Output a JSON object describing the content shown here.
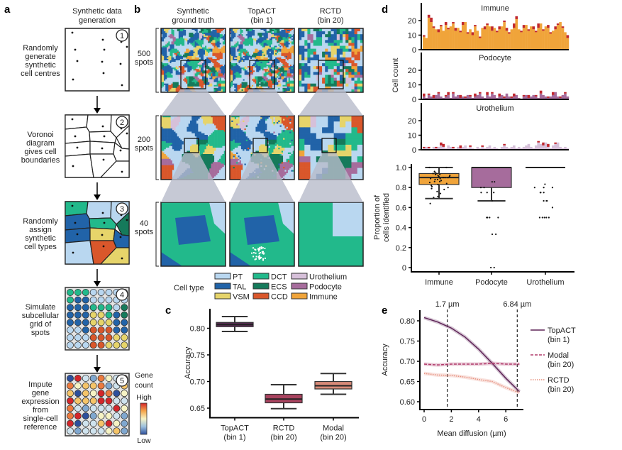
{
  "panel_a": {
    "label": "a",
    "title": [
      "Synthetic data",
      "generation"
    ],
    "steps": [
      {
        "num": "1",
        "text": [
          "Randomly",
          "generate",
          "synthetic",
          "cell centres"
        ]
      },
      {
        "num": "2",
        "text": [
          "Voronoi",
          "diagram",
          "gives cell",
          "boundaries"
        ]
      },
      {
        "num": "3",
        "text": [
          "Randomly",
          "assign",
          "synthetic",
          "cell types"
        ]
      },
      {
        "num": "4",
        "text": [
          "Simulate",
          "subcellular",
          "grid of",
          "spots"
        ]
      },
      {
        "num": "5",
        "text": [
          "Impute",
          "gene",
          "expression",
          "from",
          "single-cell",
          "reference"
        ]
      }
    ],
    "gene_count_legend": {
      "title": [
        "Gene",
        "count"
      ],
      "high": "High",
      "low": "Low"
    }
  },
  "panel_b": {
    "label": "b",
    "columns": [
      [
        "Synthetic",
        "ground truth"
      ],
      [
        "TopACT",
        "(bin 1)"
      ],
      [
        "RCTD",
        "(bin 20)"
      ]
    ],
    "rows": [
      [
        "500",
        "spots"
      ],
      [
        "200",
        "spots"
      ],
      [
        "40",
        "spots"
      ]
    ],
    "legend_title": "Cell type",
    "cell_types": [
      {
        "name": "PT",
        "color": "#b9d7f0"
      },
      {
        "name": "TAL",
        "color": "#2163a8"
      },
      {
        "name": "VSM",
        "color": "#e6d46a"
      },
      {
        "name": "DCT",
        "color": "#22b98b"
      },
      {
        "name": "ECS",
        "color": "#157a5b"
      },
      {
        "name": "CCD",
        "color": "#d9572b"
      },
      {
        "name": "Urothelium",
        "color": "#d6c0d9"
      },
      {
        "name": "Podocyte",
        "color": "#a66c9c"
      },
      {
        "name": "Immune",
        "color": "#f0a43a"
      }
    ]
  },
  "chart_data": [
    {
      "panel": "c",
      "type": "box",
      "ylabel": "Accuracy",
      "ylim": [
        0.64,
        0.83
      ],
      "yticks": [
        "0.65",
        "0.70",
        "0.75",
        "0.80"
      ],
      "categories": [
        [
          "TopACT",
          "(bin 1)"
        ],
        [
          "RCTD",
          "(bin 20)"
        ],
        [
          "Modal",
          "(bin 20)"
        ]
      ],
      "boxes": [
        {
          "min": 0.794,
          "q1": 0.803,
          "median": 0.807,
          "q3": 0.811,
          "max": 0.822,
          "color": "#5a2a55"
        },
        {
          "min": 0.649,
          "q1": 0.66,
          "median": 0.667,
          "q3": 0.676,
          "max": 0.694,
          "color": "#a8435f"
        },
        {
          "min": 0.676,
          "q1": 0.686,
          "median": 0.692,
          "q3": 0.7,
          "max": 0.715,
          "color": "#d88a78"
        }
      ]
    },
    {
      "panel": "d",
      "type": "bar",
      "stacked": true,
      "ylabel": "Cell count",
      "ylim": [
        0,
        30
      ],
      "yticks": [
        "0",
        "10",
        "20"
      ],
      "highlight_color": "#c0282e",
      "subplots": [
        {
          "title": "Immune",
          "color": "#f0a43a",
          "values": [
            9,
            8,
            22,
            19,
            15,
            14,
            12,
            16,
            13,
            17,
            14,
            16,
            18,
            13,
            15,
            12,
            17,
            19,
            11,
            14,
            10,
            16,
            13,
            8,
            15,
            14,
            17,
            16,
            13,
            15,
            12,
            14,
            16,
            19,
            13,
            11,
            14,
            15,
            21,
            14,
            12,
            15,
            17,
            13,
            16,
            14,
            12,
            15,
            18,
            13,
            16,
            15,
            11,
            13,
            14,
            17,
            19,
            15,
            12,
            8
          ],
          "highlighted": [
            1,
            0,
            2,
            3,
            1,
            0,
            2,
            1,
            0,
            2,
            1,
            0,
            1,
            2,
            0,
            1,
            2,
            0,
            1,
            0,
            2,
            1,
            0,
            1,
            0,
            2,
            1,
            0,
            3,
            0,
            1,
            2,
            0,
            1,
            2,
            1,
            0,
            3,
            2,
            0,
            1,
            2,
            0,
            1,
            0,
            2,
            1,
            3,
            0,
            1,
            0,
            2,
            1,
            0,
            2,
            1,
            0,
            1,
            0,
            2
          ]
        },
        {
          "title": "Podocyte",
          "color": "#a66c9c",
          "values": [
            2,
            1,
            3,
            2,
            1,
            3,
            4,
            2,
            1,
            2,
            3,
            1,
            4,
            2,
            3,
            1,
            2,
            1,
            3,
            2,
            1,
            2,
            3,
            4,
            2,
            1,
            3,
            2,
            4,
            3,
            1,
            2,
            3,
            1,
            4,
            2,
            1,
            2,
            3,
            1,
            0,
            2,
            3,
            1,
            2,
            3,
            2,
            1,
            4,
            3,
            2,
            1,
            2,
            3,
            5,
            2,
            1,
            3,
            4,
            2
          ],
          "highlighted": [
            2,
            0,
            1,
            0,
            2,
            0,
            1,
            0,
            0,
            1,
            2,
            0,
            1,
            0,
            0,
            2,
            0,
            1,
            0,
            1,
            0,
            2,
            0,
            1,
            0,
            0,
            2,
            0,
            1,
            0,
            0,
            2,
            0,
            1,
            0,
            0,
            1,
            2,
            0,
            0,
            0,
            1,
            0,
            2,
            0,
            0,
            1,
            0,
            2,
            0,
            0,
            1,
            0,
            2,
            0,
            0,
            1,
            0,
            1,
            0
          ]
        },
        {
          "title": "Urothelium",
          "color": "#d6c0d9",
          "values": [
            1,
            2,
            1,
            0,
            2,
            1,
            2,
            3,
            2,
            1,
            3,
            2,
            1,
            0,
            2,
            1,
            2,
            3,
            1,
            2,
            1,
            0,
            2,
            1,
            2,
            1,
            2,
            3,
            1,
            2,
            1,
            0,
            2,
            3,
            2,
            1,
            2,
            3,
            1,
            2,
            1,
            2,
            3,
            4,
            2,
            1,
            3,
            5,
            4,
            3,
            5,
            2,
            1,
            3,
            4,
            5,
            2,
            1,
            2,
            1
          ],
          "highlighted": [
            1,
            0,
            1,
            0,
            0,
            1,
            0,
            2,
            2,
            0,
            0,
            0,
            1,
            0,
            0,
            2,
            0,
            0,
            0,
            1,
            0,
            0,
            0,
            0,
            1,
            0,
            0,
            0,
            0,
            0,
            0,
            0,
            0,
            1,
            0,
            0,
            0,
            0,
            0,
            0,
            0,
            0,
            0,
            0,
            0,
            0,
            0,
            1,
            0,
            2,
            0,
            2,
            0,
            0,
            1,
            0,
            0,
            0,
            0,
            0
          ]
        }
      ]
    },
    {
      "panel": "d",
      "type": "box",
      "ylabel": [
        "Proportion of",
        "cells identified"
      ],
      "ylim": [
        0,
        1.0
      ],
      "yticks": [
        "0",
        "0.2",
        "0.4",
        "0.6",
        "0.8",
        "1.0"
      ],
      "categories": [
        "Immune",
        "Podocyte",
        "Urothelium"
      ],
      "boxes": [
        {
          "min": 0.69,
          "q1": 0.83,
          "median": 0.9,
          "q3": 0.94,
          "max": 1.0,
          "color": "#f0a43a",
          "points": [
            0.64,
            0.7,
            0.71,
            0.74,
            0.76,
            0.78,
            0.79,
            0.8,
            0.81,
            0.82,
            0.83,
            0.84,
            0.85,
            0.86,
            0.86,
            0.87,
            0.88,
            0.88,
            0.89,
            0.89,
            0.9,
            0.9,
            0.9,
            0.91,
            0.91,
            0.92,
            0.92,
            0.93,
            0.93,
            0.94,
            0.94,
            0.95,
            0.96,
            1.0,
            1.0
          ]
        },
        {
          "min": 0.667,
          "q1": 0.8,
          "median": 1.0,
          "q3": 1.0,
          "max": 1.0,
          "color": "#a66c9c",
          "points": [
            0.857,
            0.857,
            0.8,
            0.8,
            0.75,
            0.75,
            0.75,
            0.667,
            0.5,
            0.5,
            0.5,
            0.5,
            0.333,
            0.333,
            0,
            0
          ]
        },
        {
          "min": 1.0,
          "q1": 1.0,
          "median": 1.0,
          "q3": 1.0,
          "max": 1.0,
          "color": "#222222",
          "points": [
            0.833,
            0.8,
            0.8,
            0.8,
            0.75,
            0.75,
            0.75,
            0.667,
            0.667,
            0.667,
            0.6,
            0.5,
            0.5,
            0.5,
            0.5,
            0.5
          ]
        }
      ]
    },
    {
      "panel": "e",
      "type": "line",
      "xlabel": "Mean diffusion (µm)",
      "ylabel": "Accuracy",
      "xlim": [
        0,
        7
      ],
      "ylim": [
        0.59,
        0.82
      ],
      "xticks": [
        "0",
        "2",
        "4",
        "6"
      ],
      "yticks": [
        "0.60",
        "0.65",
        "0.70",
        "0.75",
        "0.80"
      ],
      "vlines": [
        {
          "x": 1.7,
          "label": "1.7 µm"
        },
        {
          "x": 6.84,
          "label": "6.84 µm"
        }
      ],
      "x": [
        0,
        1,
        2,
        3,
        4,
        5,
        6,
        7
      ],
      "series": [
        {
          "name": [
            "TopACT",
            "(bin 1)"
          ],
          "style": "solid",
          "color": "#5e2457",
          "values": [
            0.808,
            0.797,
            0.782,
            0.76,
            0.73,
            0.695,
            0.658,
            0.625
          ]
        },
        {
          "name": [
            "Modal",
            "(bin 20)"
          ],
          "style": "dashed",
          "color": "#b03a6a",
          "values": [
            0.693,
            0.691,
            0.693,
            0.693,
            0.693,
            0.695,
            0.693,
            0.693
          ]
        },
        {
          "name": [
            "RCTD",
            "(bin 20)"
          ],
          "style": "dotted",
          "color": "#e6907e",
          "values": [
            0.67,
            0.666,
            0.665,
            0.661,
            0.655,
            0.65,
            0.635,
            0.622
          ]
        }
      ],
      "legend": "right"
    }
  ]
}
